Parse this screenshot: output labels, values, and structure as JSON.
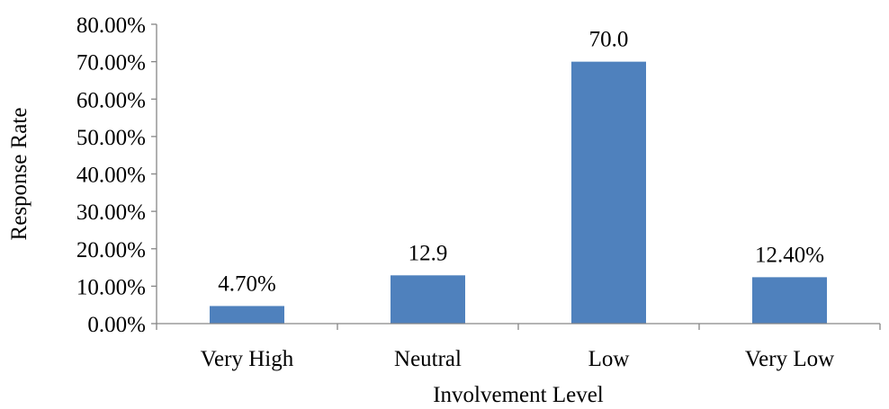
{
  "chart_data": {
    "type": "bar",
    "categories": [
      "Very High",
      "Neutral",
      "Low",
      "Very Low"
    ],
    "values": [
      4.7,
      12.9,
      70.0,
      12.4
    ],
    "data_labels": [
      "4.70%",
      "12.9",
      "70.0",
      "12.40%"
    ],
    "ylim": [
      0,
      80
    ],
    "yticks": [
      0,
      10,
      20,
      30,
      40,
      50,
      60,
      70,
      80
    ],
    "ytick_labels": [
      "0.00%",
      "10.00%",
      "20.00%",
      "30.00%",
      "40.00%",
      "50.00%",
      "60.00%",
      "70.00%",
      "80.00%"
    ],
    "xlabel": "Involvement Level",
    "ylabel": "Response Rate",
    "grid": false,
    "legend": "none",
    "bar_color": "#4f81bd"
  }
}
